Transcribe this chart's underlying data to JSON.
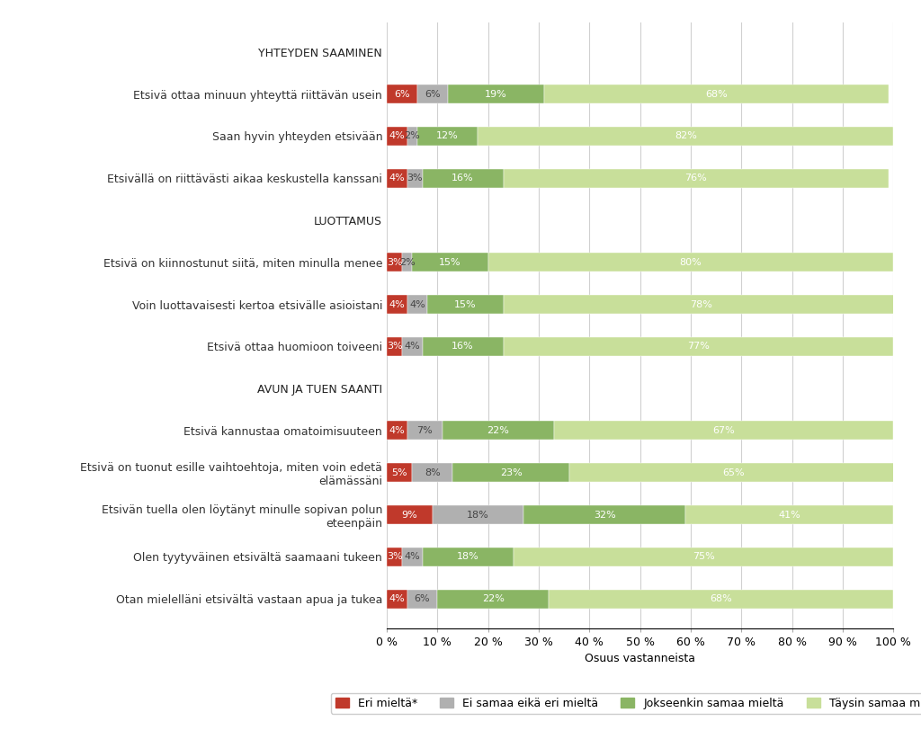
{
  "categories": [
    "YHTEYDEN SAAMINEN",
    "Etsivä ottaa minuun yhteyttä riittävän usein",
    "Saan hyvin yhteyden etsivään",
    "Etsivällä on riittävästi aikaa keskustella kanssani",
    "LUOTTAMUS",
    "Etsivä on kiinnostunut siitä, miten minulla menee",
    "Voin luottavaisesti kertoa etsivälle asioistani",
    "Etsivä ottaa huomioon toiveeni",
    "AVUN JA TUEN SAANTI",
    "Etsivä kannustaa omatoimisuuteen",
    "Etsivä on tuonut esille vaihtoehtoja, miten voin edetä\nelämässäni",
    "Etsivän tuella olen löytänyt minulle sopivan polun\neteenpäin",
    "Olen tyytyväinen etsivältä saamaani tukeen",
    "Otan mielelläni etsivältä vastaan apua ja tukea"
  ],
  "header_rows": [
    0,
    4,
    8
  ],
  "data": [
    [
      0,
      0,
      0,
      0
    ],
    [
      6,
      6,
      19,
      68
    ],
    [
      4,
      2,
      12,
      82
    ],
    [
      4,
      3,
      16,
      76
    ],
    [
      0,
      0,
      0,
      0
    ],
    [
      3,
      2,
      15,
      80
    ],
    [
      4,
      4,
      15,
      78
    ],
    [
      3,
      4,
      16,
      77
    ],
    [
      0,
      0,
      0,
      0
    ],
    [
      4,
      7,
      22,
      67
    ],
    [
      5,
      8,
      23,
      65
    ],
    [
      9,
      18,
      32,
      41
    ],
    [
      3,
      4,
      18,
      75
    ],
    [
      4,
      6,
      22,
      68
    ]
  ],
  "colors": [
    "#c0392b",
    "#b0b0b0",
    "#8ab564",
    "#c8df9a"
  ],
  "legend_labels": [
    "Eri mieltä*",
    "Ei samaa eikä eri mieltä",
    "Jokseenkin samaa mieltä",
    "Täysin samaa mieltä"
  ],
  "xlabel": "Osuus vastanneista",
  "xlim": [
    0,
    100
  ],
  "xtick_labels": [
    "0 %",
    "10 %",
    "20 %",
    "30 %",
    "40 %",
    "50 %",
    "60 %",
    "70 %",
    "80 %",
    "90 %",
    "100 %"
  ],
  "xtick_values": [
    0,
    10,
    20,
    30,
    40,
    50,
    60,
    70,
    80,
    90,
    100
  ],
  "background_color": "#ffffff",
  "grid_color": "#d0d0d0",
  "bar_text_fontsize": 8,
  "tick_fontsize": 9,
  "ylabel_fontsize": 9,
  "legend_fontsize": 9,
  "xlabel_fontsize": 9
}
